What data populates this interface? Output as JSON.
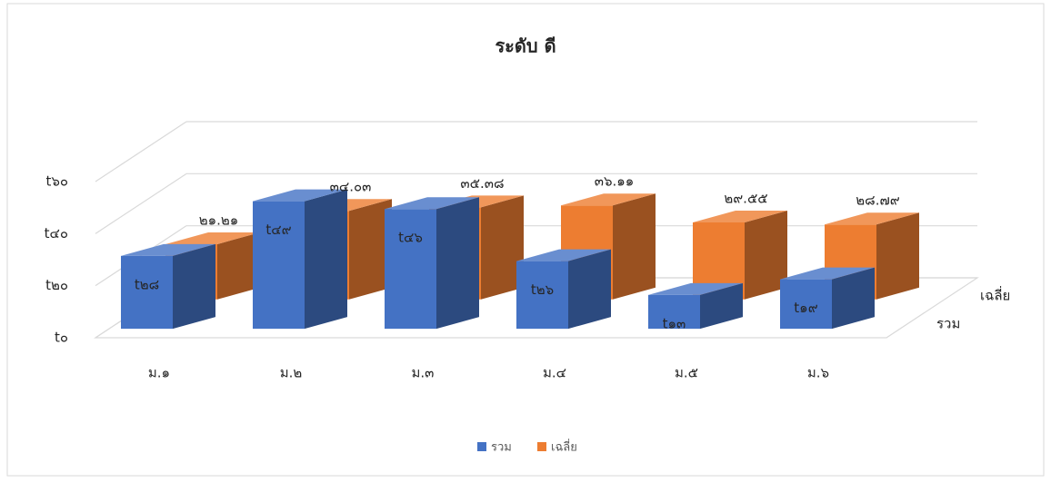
{
  "chart_data": {
    "type": "bar3d",
    "title": "ระดับ ดี",
    "categories": [
      "ม.๑",
      "ม.๒",
      "ม.๓",
      "ม.๔",
      "ม.๕",
      "ม.๖"
    ],
    "series": [
      {
        "name": "รวม",
        "color": "#4472c4",
        "values": [
          28,
          49,
          46,
          26,
          13,
          19
        ],
        "value_labels": [
          "t๒๘",
          "t๔๙",
          "t๔๖",
          "t๒๖",
          "t๑๓",
          "t๑๙"
        ]
      },
      {
        "name": "เฉลี่ย",
        "color": "#ed7d31",
        "values": [
          21.21,
          34.03,
          35.38,
          36.11,
          29.55,
          28.79
        ],
        "value_labels": [
          "๒๑.๒๑",
          "๓๔.๐๓",
          "๓๕.๓๘",
          "๓๖.๑๑",
          "๒๙.๕๕",
          "๒๘.๗๙"
        ]
      }
    ],
    "ylim": [
      0,
      60
    ],
    "yticks": [
      {
        "value": 0,
        "label": "t๐"
      },
      {
        "value": 20,
        "label": "t๒๐"
      },
      {
        "value": 40,
        "label": "t๔๐"
      },
      {
        "value": 60,
        "label": "t๖๐"
      }
    ],
    "grid": true,
    "legend": "bottom"
  }
}
